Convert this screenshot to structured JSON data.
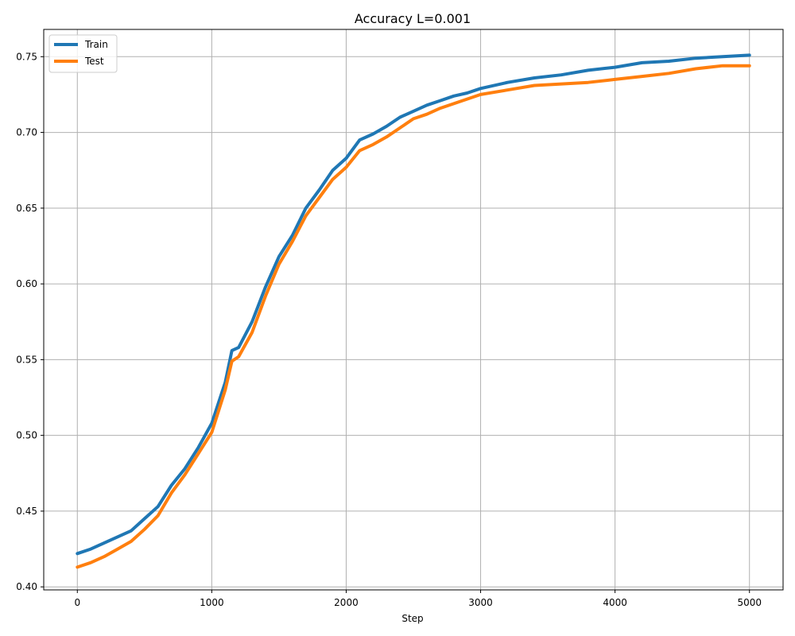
{
  "chart_data": {
    "type": "line",
    "title": "Accuracy L=0.001",
    "xlabel": "Step",
    "ylabel": "",
    "xlim": [
      -250,
      5250
    ],
    "ylim": [
      0.398,
      0.768
    ],
    "xticks": [
      0,
      1000,
      2000,
      3000,
      4000,
      5000
    ],
    "xtick_labels": [
      "0",
      "1000",
      "2000",
      "3000",
      "4000",
      "5000"
    ],
    "yticks": [
      0.4,
      0.45,
      0.5,
      0.55,
      0.6,
      0.65,
      0.7,
      0.75
    ],
    "ytick_labels": [
      "0.40",
      "0.45",
      "0.50",
      "0.55",
      "0.60",
      "0.65",
      "0.70",
      "0.75"
    ],
    "grid": true,
    "legend_position": "top-left",
    "series": [
      {
        "name": "Train",
        "color": "#1f77b4",
        "x": [
          0,
          100,
          200,
          300,
          400,
          500,
          600,
          700,
          800,
          900,
          1000,
          1100,
          1150,
          1200,
          1300,
          1400,
          1500,
          1600,
          1700,
          1800,
          1900,
          2000,
          2100,
          2200,
          2300,
          2400,
          2500,
          2600,
          2700,
          2800,
          2900,
          3000,
          3200,
          3400,
          3600,
          3800,
          4000,
          4200,
          4400,
          4600,
          4800,
          5000
        ],
        "y": [
          0.422,
          0.425,
          0.429,
          0.433,
          0.437,
          0.445,
          0.453,
          0.467,
          0.478,
          0.492,
          0.508,
          0.535,
          0.556,
          0.558,
          0.575,
          0.598,
          0.618,
          0.632,
          0.65,
          0.662,
          0.675,
          0.683,
          0.695,
          0.699,
          0.704,
          0.71,
          0.714,
          0.718,
          0.721,
          0.724,
          0.726,
          0.729,
          0.733,
          0.736,
          0.738,
          0.741,
          0.743,
          0.746,
          0.747,
          0.749,
          0.75,
          0.751
        ]
      },
      {
        "name": "Test",
        "color": "#ff7f0e",
        "x": [
          0,
          100,
          200,
          300,
          400,
          500,
          600,
          700,
          800,
          900,
          1000,
          1100,
          1150,
          1200,
          1300,
          1400,
          1500,
          1600,
          1700,
          1800,
          1900,
          2000,
          2100,
          2200,
          2300,
          2400,
          2500,
          2600,
          2700,
          2800,
          2900,
          3000,
          3200,
          3400,
          3600,
          3800,
          4000,
          4200,
          4400,
          4600,
          4800,
          5000
        ],
        "y": [
          0.413,
          0.416,
          0.42,
          0.425,
          0.43,
          0.438,
          0.447,
          0.462,
          0.474,
          0.488,
          0.502,
          0.53,
          0.549,
          0.552,
          0.568,
          0.592,
          0.613,
          0.628,
          0.645,
          0.657,
          0.669,
          0.677,
          0.688,
          0.692,
          0.697,
          0.703,
          0.709,
          0.712,
          0.716,
          0.719,
          0.722,
          0.725,
          0.728,
          0.731,
          0.732,
          0.733,
          0.735,
          0.737,
          0.739,
          0.742,
          0.744,
          0.744
        ]
      }
    ]
  }
}
